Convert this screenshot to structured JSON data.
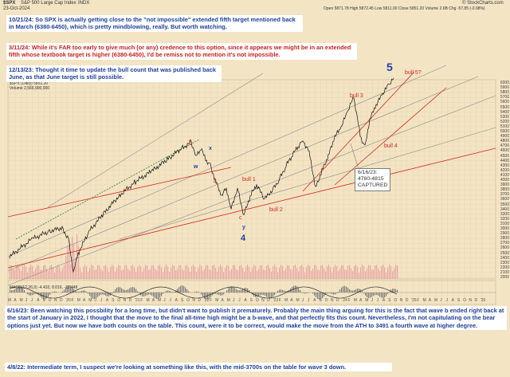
{
  "header": {
    "symbol": "$SPX",
    "name": "S&P 500 Large Cap Index",
    "exchange": "INDX",
    "date": "23-Oct-2024",
    "quote": "Open 5871.78  High 5872.45  Low 5811.00  Close 5851.20  Volume 2.6B  Chg -57.85 (-0.98%)",
    "watermark": "© StockCharts.com",
    "legend_main": "$SPX (Daily) 5851.20",
    "legend_sub": "Volume 2,566,900,000",
    "macd_label": "MACD(12,26,9) -4.432, 8.016, -12.448"
  },
  "notes": {
    "n1": "10/21/24:  So SPX is actually getting close to the \"not impossible\" extended fifth target mentioned back in March (6380-6450), which is pretty mindblowing, really.  But worth watching.",
    "n2": "3/11/24:  While it's FAR too early to give much (or any) credence to this option, since it appears we might be in an extended fifth whose textbook target is higher (6380-6450), I'd be remiss not to mention it's not impossible.",
    "n3": "12/13/23:  Thought it time to update the bull count that was published back June, as that June target is still possible.",
    "n4": "6/16/23:  Been watching this possbility for a long time, but didn't want to publish it prematurely.  Probably the main thing arguing for this is the fact that wave b ended right back at the start of January in 2022, I thought that the move to the final all-time high might be a b-wave, and that perfectly fits this count.  Nevertheless, I'm not capitulating on the bear options just yet.  But now we have both counts on the table.  This count, were it to be correct, would make the move from the ATH to 3491 a fourth wave at higher degree.",
    "n5": "4/8/22:  Intermediate term, I suspect we're looking at something like this, with the mid-3700s on the table for wave 3 down."
  },
  "callout": [
    "6/16/23:",
    "4780-4815",
    "CAPTURED"
  ],
  "wave_labels": {
    "bull5": "bull 5?",
    "five": "5",
    "bull3": "bull 3",
    "bull4": "bull 4",
    "bull1": "bull 1",
    "bull2": "bull 2",
    "b": "b",
    "x": "x",
    "w": "w",
    "a": "a",
    "c": "c",
    "y": "y",
    "four": "4"
  },
  "y_ticks": [
    "6000",
    "5900",
    "5800",
    "5700",
    "5600",
    "5500",
    "5400",
    "5300",
    "5200",
    "5100",
    "5000",
    "4900",
    "4800",
    "4700",
    "4600",
    "4500",
    "4400",
    "4300",
    "4200",
    "4100",
    "4000",
    "3900",
    "3800",
    "3700",
    "3600",
    "3500",
    "3400",
    "3300",
    "3200",
    "3100",
    "3000",
    "2900",
    "2800",
    "2700",
    "2600",
    "2500",
    "2400",
    "2300",
    "2200",
    "2100",
    "2000"
  ],
  "x_ticks": [
    "M",
    "A",
    "M",
    "J",
    "J",
    "A",
    "S",
    "O",
    "N",
    "D",
    "'20",
    "F",
    "M",
    "A",
    "M",
    "J",
    "J",
    "A",
    "S",
    "O",
    "N",
    "D",
    "'21",
    "F",
    "M",
    "A",
    "M",
    "J",
    "J",
    "A",
    "S",
    "O",
    "N",
    "D",
    "'22",
    "F",
    "M",
    "A",
    "M",
    "J",
    "J",
    "A",
    "S",
    "O",
    "N",
    "D",
    "'23",
    "F",
    "M",
    "A",
    "M",
    "J",
    "J",
    "A",
    "S",
    "O",
    "N",
    "D",
    "'24",
    "F",
    "M",
    "A",
    "M",
    "J",
    "J",
    "A",
    "S",
    "O",
    "N",
    "D",
    "'25",
    "F",
    "M",
    "A",
    "M",
    "J",
    "J",
    "A",
    "S",
    "O",
    "N",
    "D",
    "'26"
  ],
  "colors": {
    "background": "#f3e4c4",
    "price": "#111111",
    "channel_red": "#d9281f",
    "channel_gray": "#8a8a8a",
    "volume": "#e9a5a5",
    "note_blue": "#1f3f9a",
    "note_red": "#c8231d",
    "wave_blue": "#1f3fb0"
  }
}
